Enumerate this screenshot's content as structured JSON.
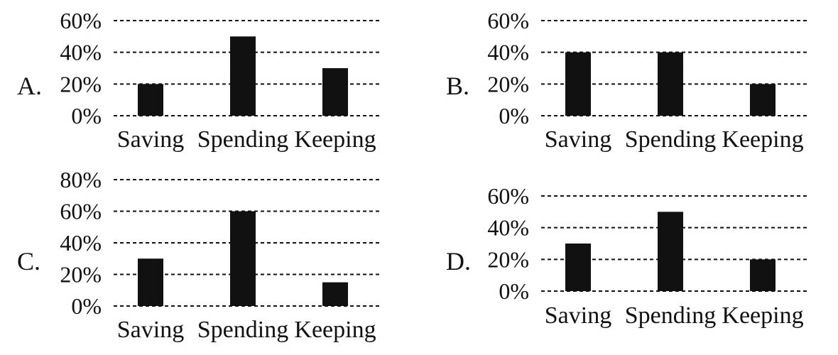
{
  "chart_data": [
    {
      "type": "bar",
      "panel_label": "A.",
      "categories": [
        "Saving",
        "Spending",
        "Keeping"
      ],
      "values": [
        20,
        50,
        30
      ],
      "ylim": [
        0,
        60
      ],
      "yticks": [
        0,
        20,
        40,
        60
      ],
      "ytick_labels": [
        "0%",
        "20%",
        "40%",
        "60%"
      ],
      "grid": "dashed"
    },
    {
      "type": "bar",
      "panel_label": "B.",
      "categories": [
        "Saving",
        "Spending",
        "Keeping"
      ],
      "values": [
        40,
        40,
        20
      ],
      "ylim": [
        0,
        60
      ],
      "yticks": [
        0,
        20,
        40,
        60
      ],
      "ytick_labels": [
        "0%",
        "20%",
        "40%",
        "60%"
      ],
      "grid": "dashed"
    },
    {
      "type": "bar",
      "panel_label": "C.",
      "categories": [
        "Saving",
        "Spending",
        "Keeping"
      ],
      "values": [
        30,
        60,
        15
      ],
      "ylim": [
        0,
        80
      ],
      "yticks": [
        0,
        20,
        40,
        60,
        80
      ],
      "ytick_labels": [
        "0%",
        "20%",
        "40%",
        "60%",
        "80%"
      ],
      "grid": "dashed"
    },
    {
      "type": "bar",
      "panel_label": "D.",
      "categories": [
        "Saving",
        "Spending",
        "Keeping"
      ],
      "values": [
        30,
        50,
        20
      ],
      "ylim": [
        0,
        60
      ],
      "yticks": [
        0,
        20,
        40,
        60
      ],
      "ytick_labels": [
        "0%",
        "20%",
        "40%",
        "60%"
      ],
      "grid": "dashed"
    }
  ],
  "colors": {
    "bar": "#111111",
    "grid": "#111111",
    "background": "#ffffff"
  }
}
